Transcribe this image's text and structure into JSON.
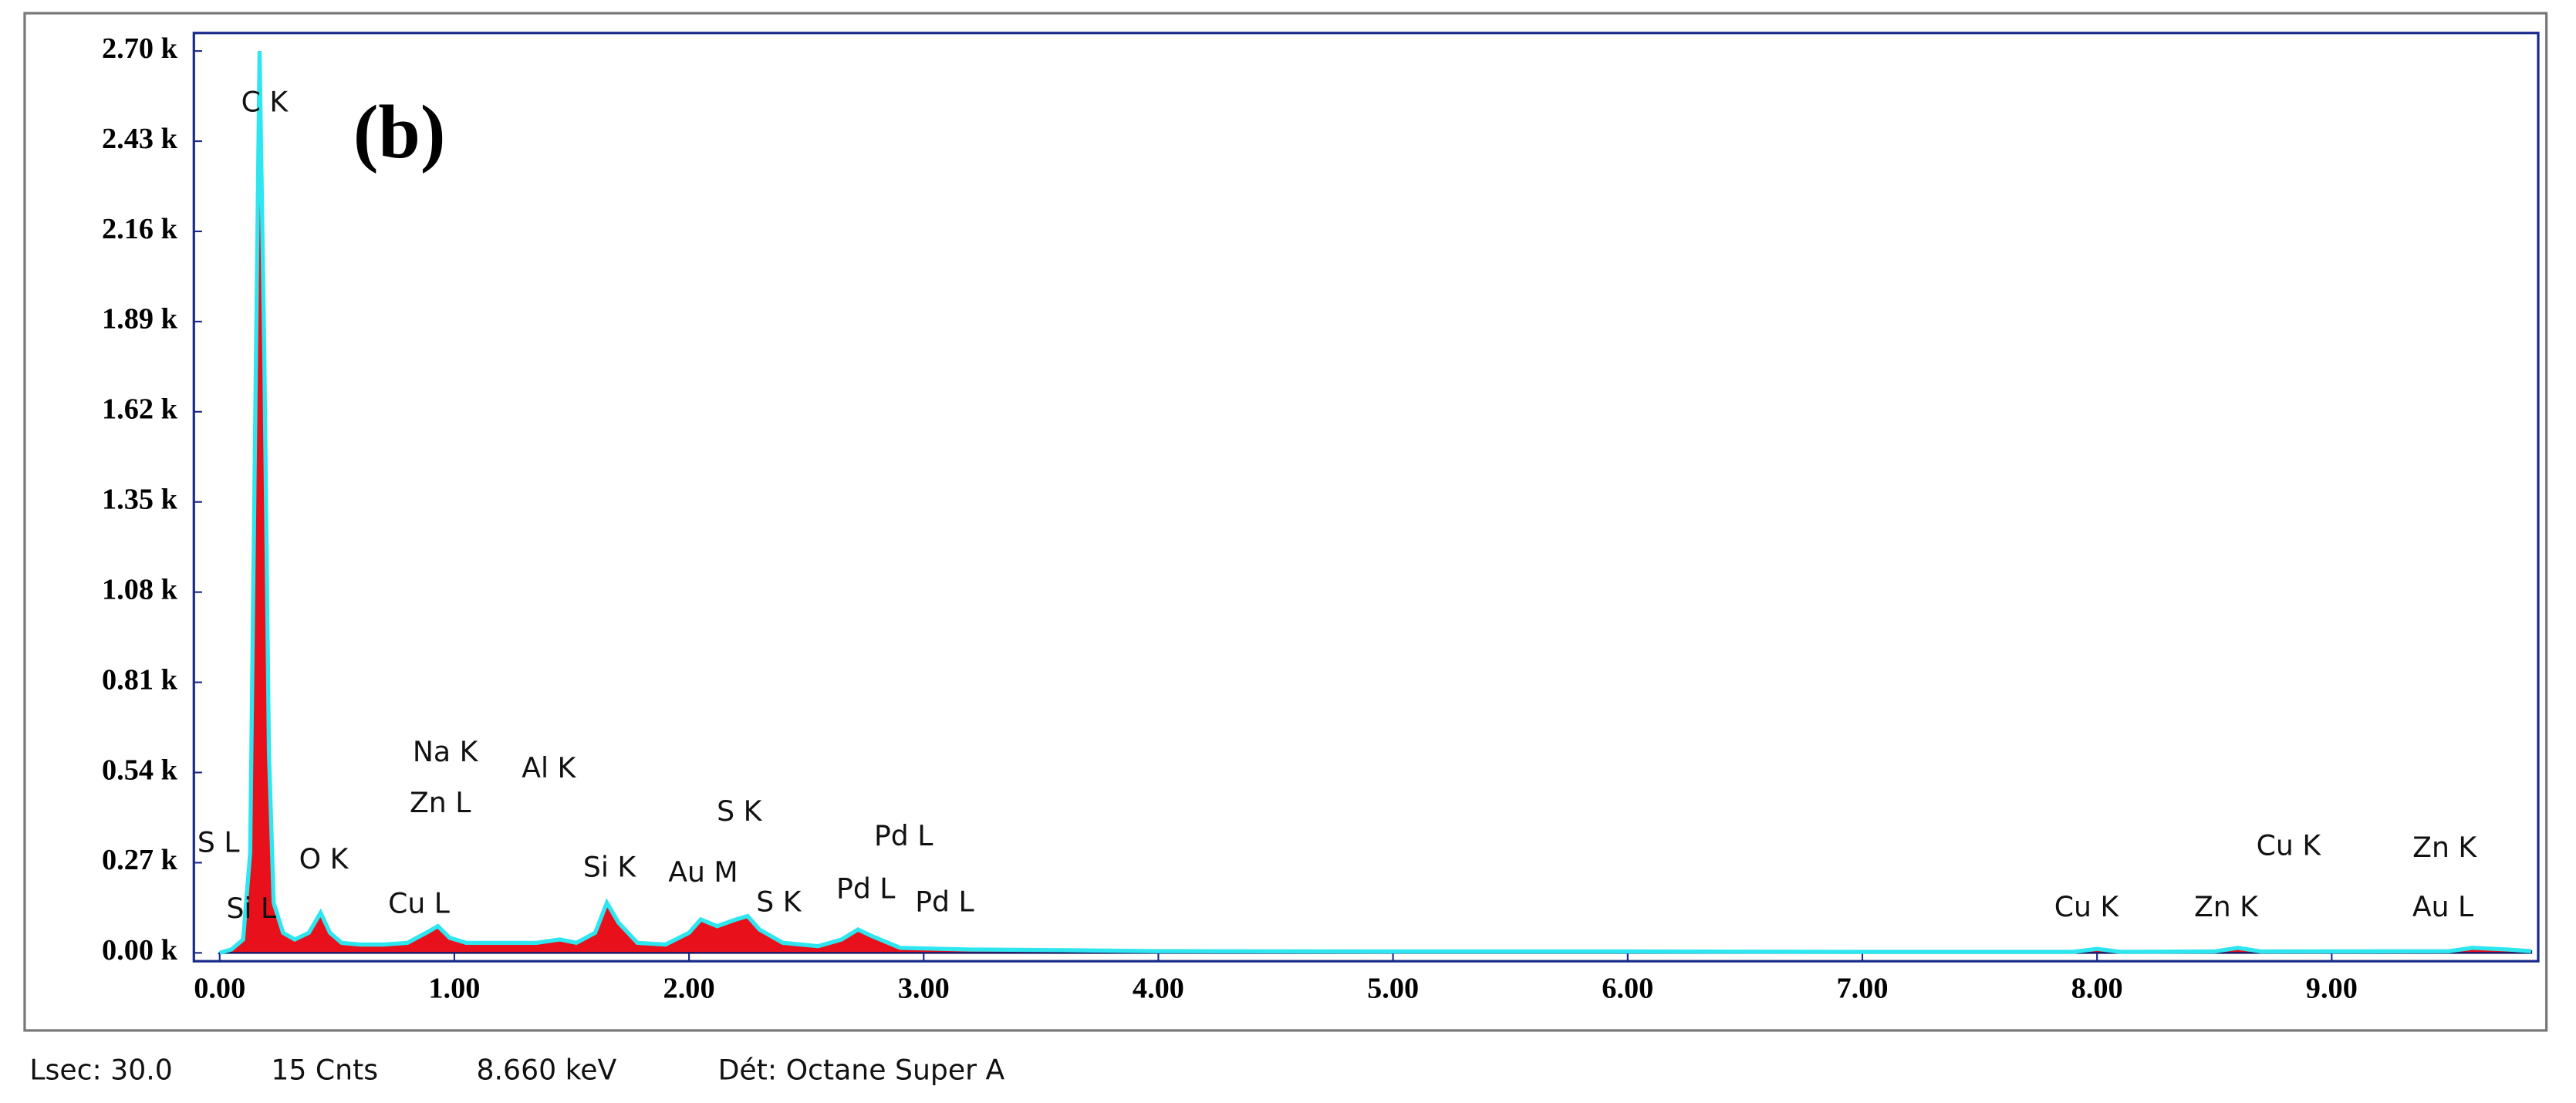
{
  "chart_data": {
    "type": "area",
    "panel_label": "(b)",
    "x": [
      0.0,
      0.05,
      0.1,
      0.13,
      0.15,
      0.17,
      0.19,
      0.21,
      0.23,
      0.27,
      0.32,
      0.38,
      0.43,
      0.47,
      0.52,
      0.6,
      0.7,
      0.8,
      0.88,
      0.93,
      0.98,
      1.05,
      1.15,
      1.25,
      1.35,
      1.45,
      1.52,
      1.6,
      1.65,
      1.7,
      1.78,
      1.9,
      2.0,
      2.05,
      2.12,
      2.2,
      2.25,
      2.3,
      2.4,
      2.55,
      2.65,
      2.72,
      2.78,
      2.9,
      3.2,
      3.6,
      4.0,
      5.0,
      6.0,
      7.0,
      7.9,
      8.0,
      8.1,
      8.5,
      8.6,
      8.7,
      9.5,
      9.6,
      9.75,
      9.85
    ],
    "values": [
      0,
      10,
      40,
      300,
      1500,
      2700,
      1800,
      600,
      150,
      60,
      40,
      60,
      120,
      60,
      30,
      25,
      25,
      30,
      60,
      80,
      45,
      30,
      30,
      30,
      30,
      40,
      30,
      60,
      150,
      90,
      30,
      25,
      60,
      100,
      80,
      100,
      110,
      70,
      30,
      20,
      40,
      70,
      50,
      15,
      10,
      8,
      5,
      4,
      4,
      3,
      3,
      12,
      3,
      4,
      15,
      4,
      5,
      15,
      10,
      5
    ],
    "color": "#e8101a",
    "line_color": "#2ee6f0",
    "xlim": [
      -0.11,
      9.88
    ],
    "xticks": [
      {
        "value": 0,
        "label": "0.00"
      },
      {
        "value": 1,
        "label": "1.00"
      },
      {
        "value": 2,
        "label": "2.00"
      },
      {
        "value": 3,
        "label": "3.00"
      },
      {
        "value": 4,
        "label": "4.00"
      },
      {
        "value": 5,
        "label": "5.00"
      },
      {
        "value": 6,
        "label": "6.00"
      },
      {
        "value": 7,
        "label": "7.00"
      },
      {
        "value": 8,
        "label": "8.00"
      },
      {
        "value": 9,
        "label": "9.00"
      }
    ],
    "ylim": [
      -25,
      2754
    ],
    "yticks": [
      {
        "value": 0,
        "label": "0.00 k"
      },
      {
        "value": 270,
        "label": "0.27 k"
      },
      {
        "value": 540,
        "label": "0.54 k"
      },
      {
        "value": 810,
        "label": "0.81 k"
      },
      {
        "value": 1080,
        "label": "1.08 k"
      },
      {
        "value": 1350,
        "label": "1.35 k"
      },
      {
        "value": 1620,
        "label": "1.62 k"
      },
      {
        "value": 1890,
        "label": "1.89 k"
      },
      {
        "value": 2160,
        "label": "2.16 k"
      },
      {
        "value": 2430,
        "label": "2.43 k"
      },
      {
        "value": 2700,
        "label": "2.70 k"
      }
    ],
    "peak_labels": [
      "C  K",
      "S  L",
      "Si L",
      "O  K",
      "Na K",
      "Zn L",
      "Cu L",
      "Al K",
      "S  K",
      "Si K",
      "Au M",
      "S  K",
      "Pd L",
      "Pd L",
      "Pd L",
      "Cu K",
      "Cu K",
      "Zn K",
      "Zn K",
      "Au L"
    ],
    "footer": [
      "Lsec: 30.0",
      "15 Cnts",
      "8.660 keV",
      "Dét: Octane Super A"
    ]
  }
}
